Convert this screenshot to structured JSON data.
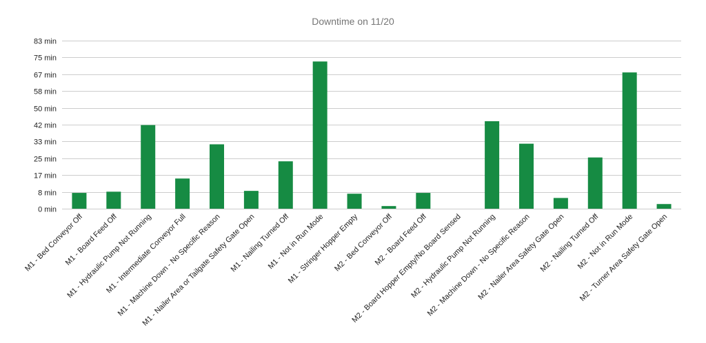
{
  "chart_data": {
    "type": "bar",
    "title": "Downtime on 11/20",
    "xlabel": "",
    "ylabel": "",
    "ylim": [
      0,
      83
    ],
    "yticks": [
      "0 min",
      "8 min",
      "17 min",
      "25 min",
      "33 min",
      "42 min",
      "50 min",
      "58 min",
      "67 min",
      "75 min",
      "83 min"
    ],
    "ytick_values": [
      0,
      8.3,
      16.6,
      24.9,
      33.2,
      41.5,
      49.8,
      58.1,
      66.4,
      74.7,
      83
    ],
    "grid": true,
    "legend": "none",
    "bar_color": "#168b43",
    "categories": [
      "M1 - Bed Conveyor Off",
      "M1 - Board Feed Off",
      "M1 - Hydraulic Pump Not Running",
      "M1 - Intermediate Conveyor Full",
      "M1 - Machine Down - No Specific Reason",
      "M1 - Nailer Area or Tailgate Safety Gate Open",
      "M1 - Nailing Turned Off",
      "M1 - Not in Run Mode",
      "M1 - Stringer Hopper Empty",
      "M2 - Bed Conveyor Off",
      "M2 - Board Feed Off",
      "M2 - Board Hopper Empty/No Board Sensed",
      "M2 - Hydraulic Pump Not Running",
      "M2 - Machine Down - No Specific Reason",
      "M2 - Nailer Area Safety Gate Open",
      "M2 - Nailing Turned Off",
      "M2 - Not in Run Mode",
      "M2 - Turner Area Safety Gate Open"
    ],
    "values": [
      7.8,
      8.4,
      41.3,
      14.9,
      31.8,
      8.8,
      23.4,
      72.7,
      7.4,
      1.3,
      7.8,
      0,
      43.2,
      32.1,
      5.3,
      25.3,
      67.3,
      2.3
    ]
  }
}
